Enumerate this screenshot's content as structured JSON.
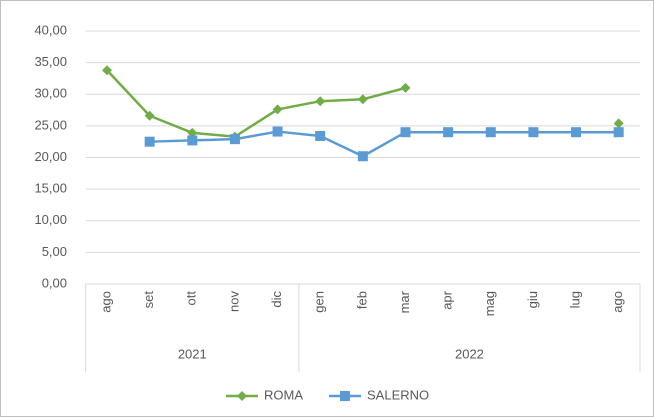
{
  "chart_data": {
    "type": "line",
    "categories": [
      "ago",
      "set",
      "ott",
      "nov",
      "dic",
      "gen",
      "feb",
      "mar",
      "apr",
      "mag",
      "giu",
      "lug",
      "ago"
    ],
    "x_groups": [
      "2021",
      "2021",
      "2021",
      "2021",
      "2021",
      "2022",
      "2022",
      "2022",
      "2022",
      "2022",
      "2022",
      "2022",
      "2022"
    ],
    "series": [
      {
        "name": "ROMA",
        "color": "#70ad47",
        "marker": "diamond",
        "values": [
          33.8,
          26.6,
          23.9,
          23.3,
          27.6,
          28.9,
          29.2,
          31.0,
          null,
          null,
          null,
          null,
          25.4
        ]
      },
      {
        "name": "SALERNO",
        "color": "#5b9bd5",
        "marker": "square",
        "values": [
          null,
          22.5,
          22.7,
          22.9,
          24.1,
          23.4,
          20.2,
          24.0,
          24.0,
          24.0,
          24.0,
          24.0,
          24.0
        ]
      }
    ],
    "ylim": [
      0,
      40
    ],
    "yticks": [
      {
        "value": 0,
        "label": "0,00"
      },
      {
        "value": 5,
        "label": "5,00"
      },
      {
        "value": 10,
        "label": "10,00"
      },
      {
        "value": 15,
        "label": "15,00"
      },
      {
        "value": 20,
        "label": "20,00"
      },
      {
        "value": 25,
        "label": "25,00"
      },
      {
        "value": 30,
        "label": "30,00"
      },
      {
        "value": 35,
        "label": "35,00"
      },
      {
        "value": 40,
        "label": "40,00"
      }
    ],
    "grid": true,
    "legend": "bottom"
  }
}
